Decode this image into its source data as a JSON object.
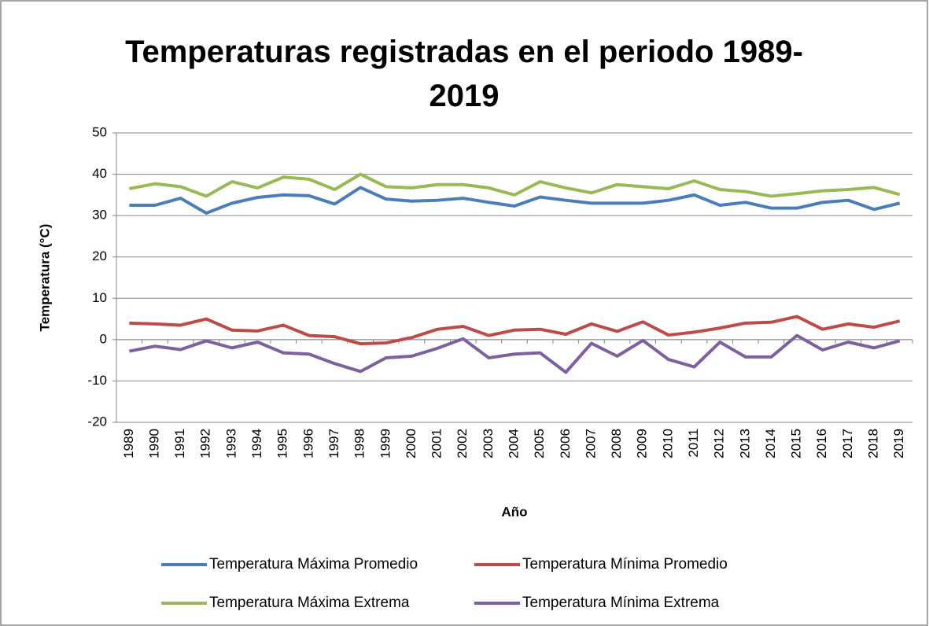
{
  "chart_data": {
    "type": "line",
    "title": "Temperaturas registradas en el periodo 1989-2019",
    "x_label": "Año",
    "y_label": "Temperatura (°C)",
    "categories": [
      "1989",
      "1990",
      "1991",
      "1992",
      "1993",
      "1994",
      "1995",
      "1996",
      "1997",
      "1998",
      "1999",
      "2000",
      "2001",
      "2002",
      "2003",
      "2004",
      "2005",
      "2006",
      "2007",
      "2008",
      "2009",
      "2010",
      "2011",
      "2012",
      "2013",
      "2014",
      "2015",
      "2016",
      "2017",
      "2018",
      "2019"
    ],
    "series": [
      {
        "name": "Temperatura Máxima Promedio",
        "color": "#4a7ebb",
        "values": [
          32.5,
          32.5,
          34.2,
          30.6,
          33,
          34.4,
          35,
          34.8,
          32.8,
          36.8,
          34,
          33.5,
          33.7,
          34.2,
          33.2,
          32.3,
          34.5,
          33.7,
          33,
          33,
          33,
          33.7,
          35,
          32.5,
          33.2,
          31.8,
          31.8,
          33.2,
          33.7,
          31.5,
          33
        ]
      },
      {
        "name": "Temperatura Mínima Promedio",
        "color": "#be4b48",
        "values": [
          4,
          3.8,
          3.5,
          5,
          2.3,
          2.1,
          3.5,
          1,
          0.7,
          -1,
          -0.8,
          0.5,
          2.5,
          3.2,
          1,
          2.3,
          2.5,
          1.3,
          3.8,
          2,
          4.3,
          1.1,
          1.8,
          2.8,
          4,
          4.2,
          5.6,
          2.5,
          3.8,
          3,
          4.5
        ]
      },
      {
        "name": "Temperatura Máxima Extrema",
        "color": "#98b954",
        "values": [
          36.5,
          37.7,
          37,
          34.7,
          38.2,
          36.7,
          39.3,
          38.8,
          36.3,
          40,
          37,
          36.7,
          37.5,
          37.5,
          36.7,
          35,
          38.2,
          36.7,
          35.5,
          37.5,
          37,
          36.5,
          38.4,
          36.3,
          35.8,
          34.7,
          35.3,
          36,
          36.3,
          36.8,
          35.1
        ]
      },
      {
        "name": "Temperatura Mínima Extrema",
        "color": "#7d60a0",
        "values": [
          -2.8,
          -1.6,
          -2.4,
          -0.3,
          -2,
          -0.6,
          -3.2,
          -3.5,
          -5.8,
          -7.7,
          -4.4,
          -4,
          -2.1,
          0.2,
          -4.4,
          -3.5,
          -3.2,
          -7.9,
          -0.9,
          -4,
          -0.2,
          -4.8,
          -6.6,
          -0.6,
          -4.2,
          -4.2,
          1,
          -2.5,
          -0.6,
          -2,
          -0.3
        ]
      }
    ],
    "ylim": [
      -20,
      50
    ],
    "yticks": [
      -20,
      -10,
      0,
      10,
      20,
      30,
      40,
      50
    ],
    "grid": true
  }
}
